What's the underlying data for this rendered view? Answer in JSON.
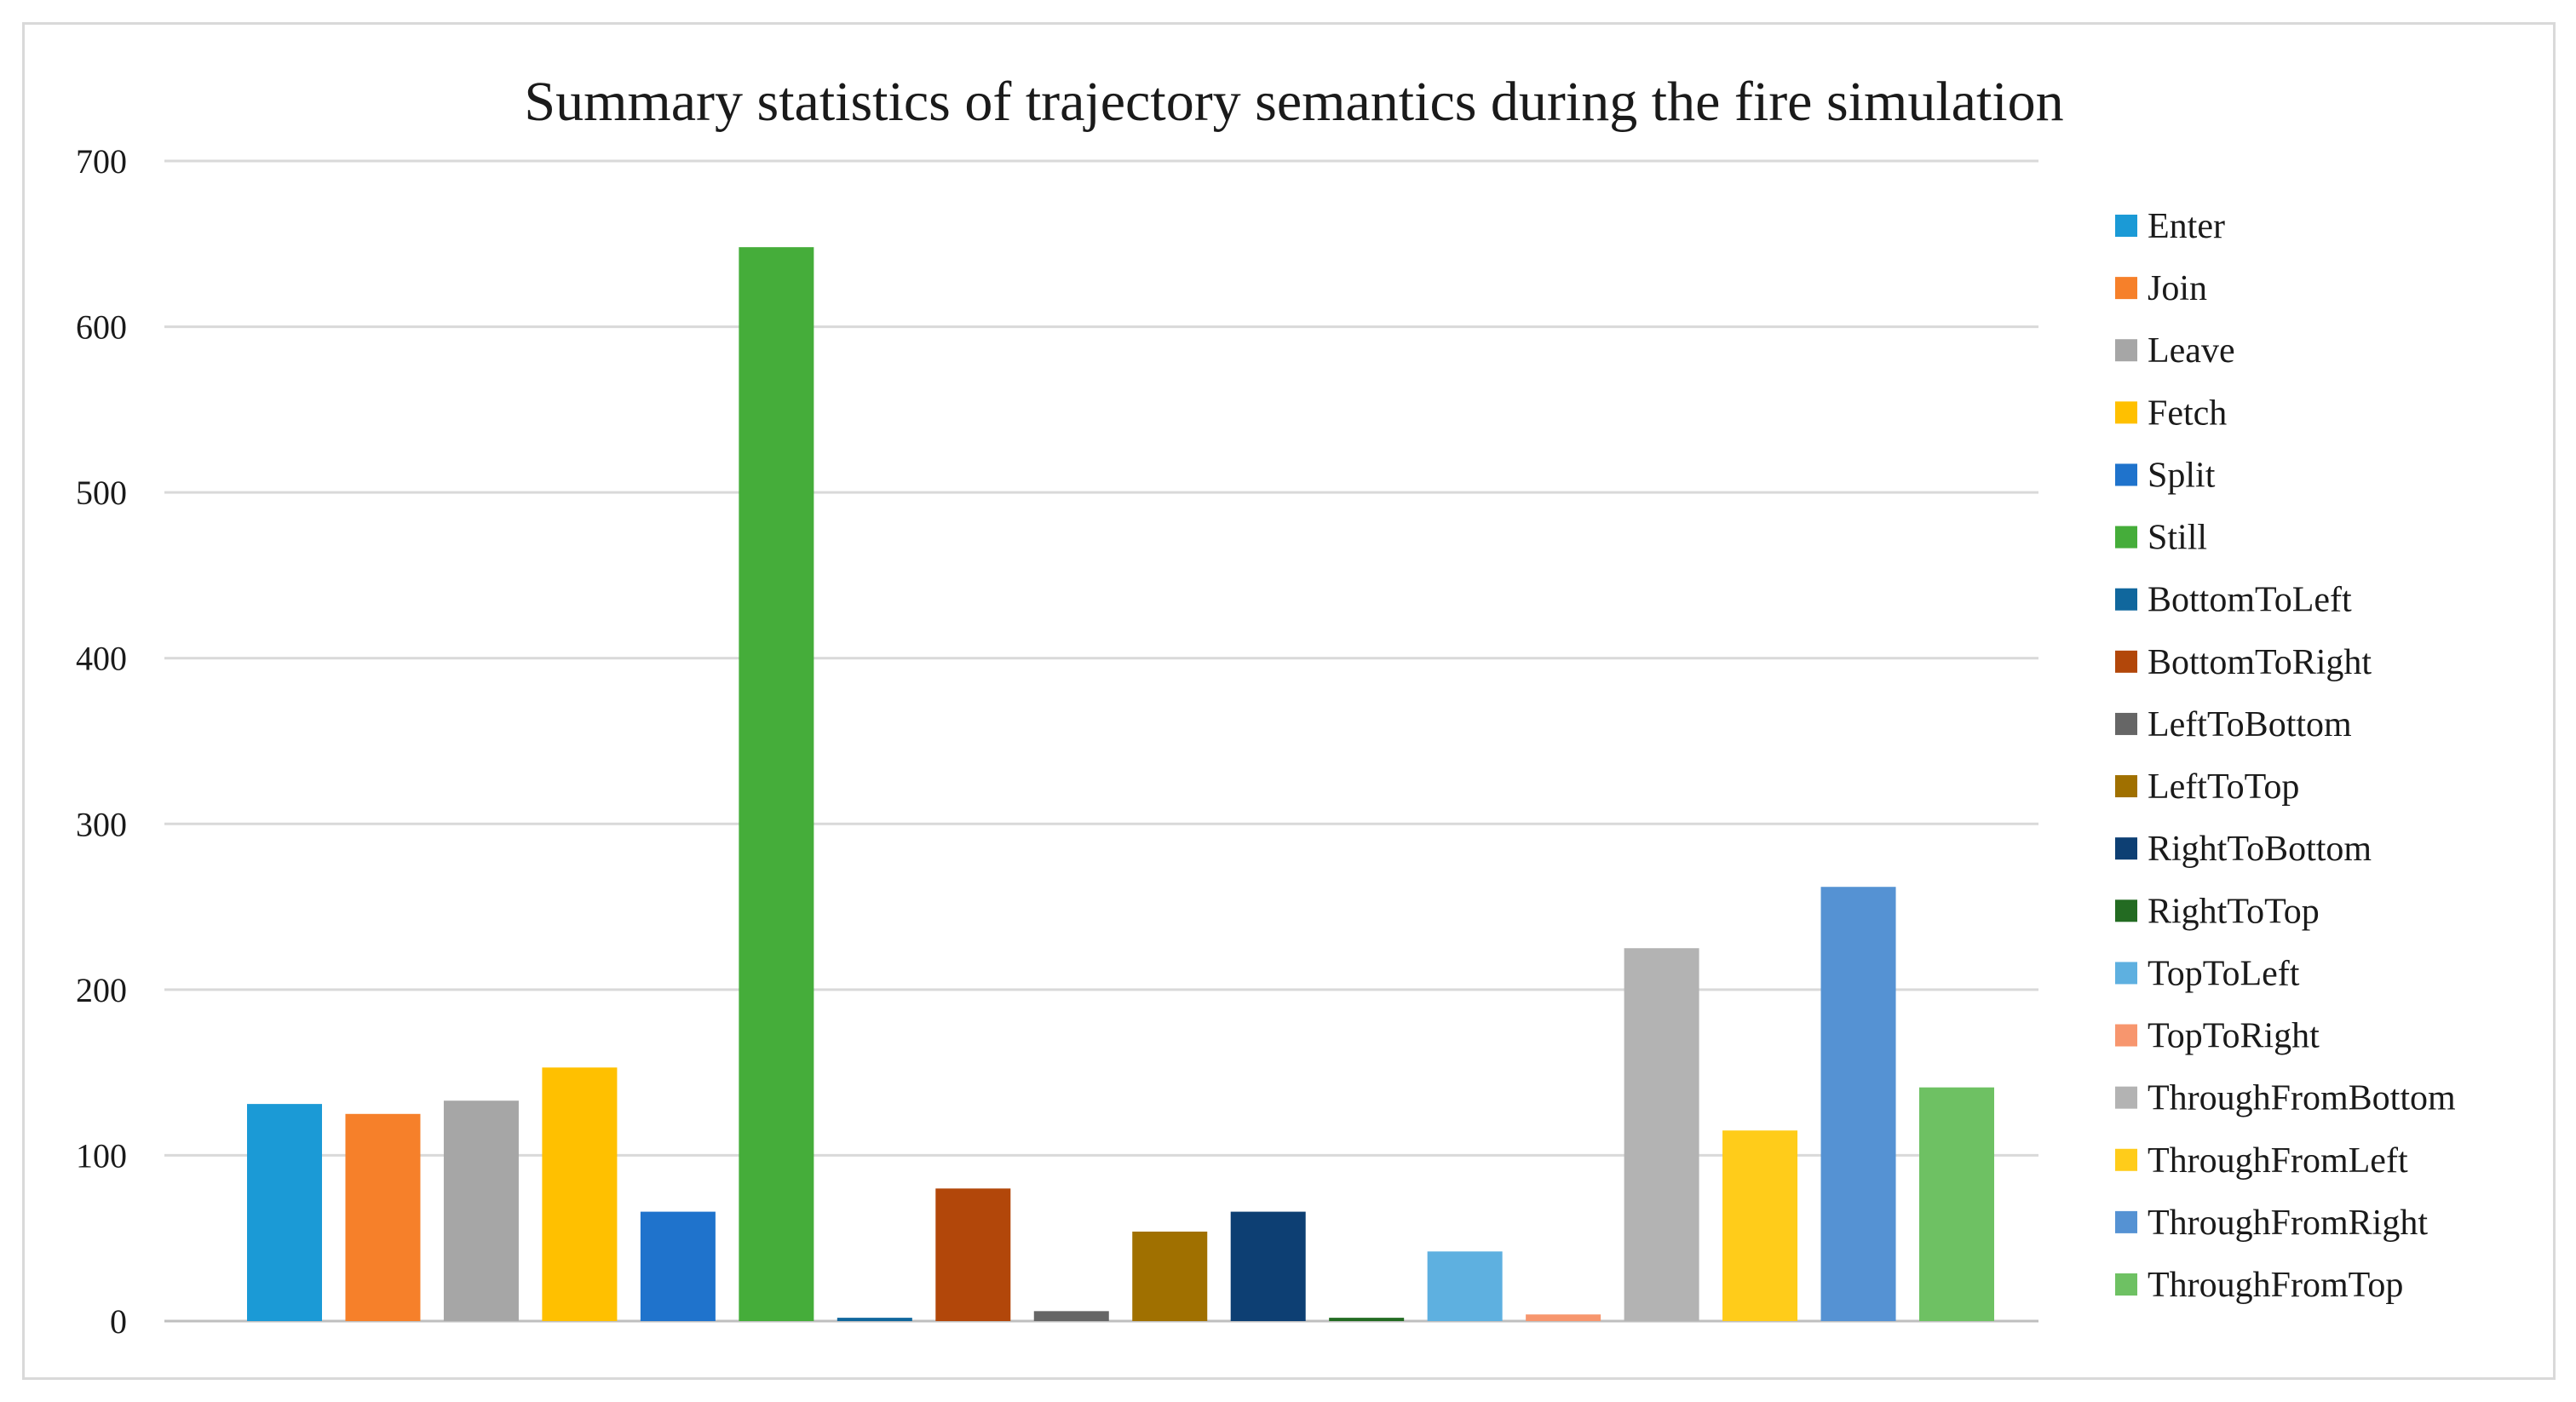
{
  "chart_data": {
    "type": "bar",
    "title": "Summary statistics of trajectory semantics during the fire simulation",
    "xlabel": "",
    "ylabel": "",
    "ylim": [
      0,
      700
    ],
    "yticks": [
      0,
      100,
      200,
      300,
      400,
      500,
      600,
      700
    ],
    "grid": true,
    "legend_position": "right",
    "categories": [
      "Enter",
      "Join",
      "Leave",
      "Fetch",
      "Split",
      "Still",
      "BottomToLeft",
      "BottomToRight",
      "LeftToBottom",
      "LeftToTop",
      "RightToBottom",
      "RightToTop",
      "TopToLeft",
      "TopToRight",
      "ThroughFromBottom",
      "ThroughFromLeft",
      "ThroughFromRight",
      "ThroughFromTop"
    ],
    "values": [
      131,
      125,
      133,
      153,
      66,
      648,
      2,
      80,
      6,
      54,
      66,
      2,
      42,
      4,
      225,
      115,
      262,
      141
    ],
    "colors": [
      "#1b9ad6",
      "#f6802a",
      "#a6a6a6",
      "#ffc000",
      "#1f73cc",
      "#45ad3a",
      "#10679d",
      "#b2470a",
      "#666666",
      "#a07000",
      "#0d3f73",
      "#236b22",
      "#5eb0e0",
      "#f7966e",
      "#b3b3b3",
      "#ffcc1a",
      "#5592d3",
      "#6ec163"
    ]
  }
}
